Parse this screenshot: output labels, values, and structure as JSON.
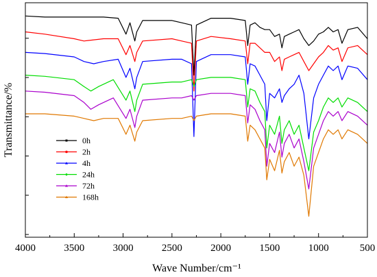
{
  "chart_data": {
    "type": "line",
    "title": "",
    "xlabel": "Wave Number/cm⁻¹",
    "ylabel": "Transmittance/%",
    "xlim": [
      4000,
      500
    ],
    "x_reversed": true,
    "x_ticks": [
      4000,
      3500,
      3000,
      2500,
      2000,
      1500,
      1000,
      500
    ],
    "y_tick_labels_shown": false,
    "grid": false,
    "legend_position": "bottom-left",
    "series": [
      {
        "name": "0h",
        "color": "#000000",
        "marker": "square",
        "x": [
          4000,
          3800,
          3500,
          3400,
          3200,
          3050,
          2970,
          2930,
          2880,
          2860,
          2800,
          2500,
          2400,
          2300,
          2275,
          2250,
          2100,
          1900,
          1750,
          1725,
          1700,
          1650,
          1600,
          1550,
          1500,
          1450,
          1400,
          1375,
          1350,
          1300,
          1250,
          1200,
          1150,
          1100,
          1050,
          1000,
          950,
          900,
          850,
          800,
          760,
          700,
          600,
          500
        ],
        "y": [
          96,
          95.5,
          95.5,
          95.5,
          95.5,
          95,
          88,
          93,
          85,
          89,
          94,
          94,
          93,
          92,
          70,
          92,
          95,
          95,
          94,
          83,
          92,
          93,
          91,
          90,
          90,
          87,
          88,
          82,
          87,
          88,
          89,
          90,
          86,
          83,
          85,
          88,
          89,
          91,
          89,
          90,
          84,
          90,
          91,
          86
        ]
      },
      {
        "name": "2h",
        "color": "#ff0000",
        "marker": "circle",
        "x": [
          4000,
          3800,
          3500,
          3400,
          3200,
          3050,
          2970,
          2930,
          2880,
          2860,
          2800,
          2500,
          2400,
          2300,
          2275,
          2250,
          2100,
          1900,
          1750,
          1725,
          1700,
          1650,
          1600,
          1550,
          1500,
          1450,
          1400,
          1375,
          1350,
          1300,
          1250,
          1200,
          1150,
          1100,
          1050,
          1000,
          950,
          900,
          850,
          800,
          760,
          700,
          600,
          500
        ],
        "y": [
          89,
          88,
          86,
          85,
          86,
          86,
          79,
          83,
          76,
          80,
          85,
          86,
          85,
          84,
          63,
          85,
          87,
          86,
          85,
          75,
          84,
          84,
          82,
          80,
          80,
          76,
          78,
          72,
          77,
          78,
          79,
          80,
          76,
          72,
          75,
          78,
          80,
          83,
          81,
          82,
          76,
          82,
          83,
          79
        ]
      },
      {
        "name": "4h",
        "color": "#0000ff",
        "marker": "triangle",
        "x": [
          4000,
          3800,
          3500,
          3400,
          3300,
          3200,
          3050,
          2970,
          2930,
          2880,
          2860,
          2800,
          2500,
          2400,
          2300,
          2275,
          2250,
          2100,
          1900,
          1750,
          1725,
          1700,
          1650,
          1600,
          1550,
          1530,
          1500,
          1450,
          1400,
          1375,
          1350,
          1300,
          1250,
          1200,
          1150,
          1100,
          1050,
          1000,
          950,
          900,
          850,
          800,
          760,
          700,
          600,
          500
        ],
        "y": [
          80,
          79.5,
          78,
          76,
          75,
          76,
          77,
          69,
          73,
          64,
          69,
          76,
          77,
          77,
          75,
          43,
          76,
          79,
          79,
          78,
          66,
          75,
          74,
          70,
          66,
          50,
          62,
          60,
          64,
          58,
          61,
          64,
          66,
          70,
          62,
          42,
          60,
          66,
          70,
          74,
          72,
          74,
          68,
          74,
          73,
          68
        ]
      },
      {
        "name": "24h",
        "color": "#00dd00",
        "marker": "diamond",
        "x": [
          4000,
          3800,
          3500,
          3400,
          3330,
          3250,
          3100,
          2970,
          2930,
          2880,
          2860,
          2800,
          2500,
          2400,
          2300,
          2275,
          2250,
          2100,
          1900,
          1750,
          1725,
          1700,
          1650,
          1600,
          1550,
          1530,
          1500,
          1450,
          1400,
          1375,
          1350,
          1300,
          1250,
          1200,
          1150,
          1100,
          1050,
          1000,
          950,
          900,
          850,
          800,
          760,
          700,
          600,
          500
        ],
        "y": [
          70,
          69.5,
          68,
          65,
          63,
          65,
          68,
          59,
          63,
          54,
          59,
          66,
          67,
          67,
          68,
          65,
          68,
          69,
          69,
          68,
          56,
          64,
          63,
          58,
          54,
          38,
          48,
          44,
          52,
          40,
          46,
          50,
          44,
          48,
          38,
          28,
          45,
          50,
          56,
          60,
          58,
          60,
          56,
          60,
          58,
          54
        ]
      },
      {
        "name": "72h",
        "color": "#aa00cc",
        "marker": "triangle",
        "x": [
          4000,
          3800,
          3500,
          3400,
          3330,
          3250,
          3100,
          2970,
          2930,
          2880,
          2860,
          2800,
          2500,
          2400,
          2300,
          2275,
          2250,
          2100,
          1900,
          1750,
          1725,
          1700,
          1650,
          1600,
          1550,
          1530,
          1500,
          1450,
          1400,
          1375,
          1350,
          1300,
          1250,
          1200,
          1150,
          1100,
          1050,
          1000,
          950,
          900,
          850,
          800,
          760,
          700,
          600,
          500
        ],
        "y": [
          63,
          62.5,
          61,
          58,
          55,
          57,
          60,
          51,
          55,
          47,
          52,
          59,
          60,
          60,
          61,
          59,
          61,
          62,
          62,
          61,
          49,
          57,
          55,
          50,
          46,
          30,
          40,
          36,
          45,
          34,
          40,
          44,
          38,
          42,
          32,
          20,
          38,
          44,
          50,
          54,
          52,
          54,
          50,
          54,
          52,
          48
        ]
      },
      {
        "name": "168h",
        "color": "#e07800",
        "marker": "triangle",
        "x": [
          4000,
          3800,
          3500,
          3400,
          3300,
          3200,
          3050,
          2970,
          2930,
          2880,
          2860,
          2800,
          2500,
          2400,
          2300,
          2275,
          2250,
          2100,
          1900,
          1750,
          1725,
          1700,
          1650,
          1600,
          1550,
          1530,
          1500,
          1450,
          1400,
          1375,
          1350,
          1300,
          1250,
          1200,
          1150,
          1100,
          1050,
          1000,
          950,
          900,
          850,
          800,
          760,
          700,
          600,
          500
        ],
        "y": [
          53,
          53,
          52,
          51,
          50,
          51,
          51,
          44,
          48,
          41,
          45,
          50,
          51,
          51,
          52,
          50,
          52,
          53,
          53,
          52,
          41,
          48,
          46,
          42,
          38,
          24,
          33,
          28,
          37,
          27,
          32,
          36,
          30,
          34,
          26,
          8,
          30,
          36,
          42,
          46,
          44,
          46,
          42,
          46,
          44,
          40
        ]
      }
    ]
  }
}
